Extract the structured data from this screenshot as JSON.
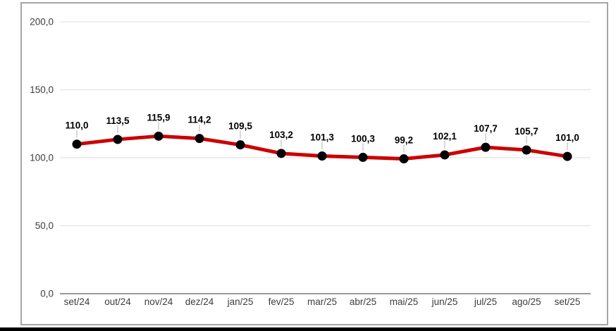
{
  "chart_data": {
    "type": "line",
    "title": "",
    "xlabel": "",
    "ylabel": "",
    "categories": [
      "set/24",
      "out/24",
      "nov/24",
      "dez/24",
      "jan/25",
      "fev/25",
      "mar/25",
      "abr/25",
      "mai/25",
      "jun/25",
      "jul/25",
      "ago/25",
      "set/25"
    ],
    "series": [
      {
        "name": "indice",
        "values": [
          110.0,
          113.5,
          115.9,
          114.2,
          109.5,
          103.2,
          101.3,
          100.3,
          99.2,
          102.1,
          107.7,
          105.7,
          101.0
        ],
        "value_labels": [
          "110,0",
          "113,5",
          "115,9",
          "114,2",
          "109,5",
          "103,2",
          "101,3",
          "100,3",
          "99,2",
          "102,1",
          "107,7",
          "105,7",
          "101,0"
        ]
      }
    ],
    "y_ticks": [
      {
        "value": 200,
        "label": "200,0"
      },
      {
        "value": 150,
        "label": "150,0"
      },
      {
        "value": 100,
        "label": "100,0"
      },
      {
        "value": 50,
        "label": "50,0"
      },
      {
        "value": 0,
        "label": "0,0"
      }
    ],
    "ylim": [
      0,
      200
    ],
    "grid": true,
    "legend": "none"
  },
  "colors": {
    "series_line": "#cc0000",
    "marker": "#000000",
    "gridline": "#e3e3e3",
    "axis_baseline": "#999999",
    "tick_text": "#3d3d3d",
    "value_label_text": "#000000",
    "leader_line": "#cccccc",
    "frame_border": "#a6a6a6",
    "bottom_bar": "#000000",
    "background": "#ffffff"
  }
}
